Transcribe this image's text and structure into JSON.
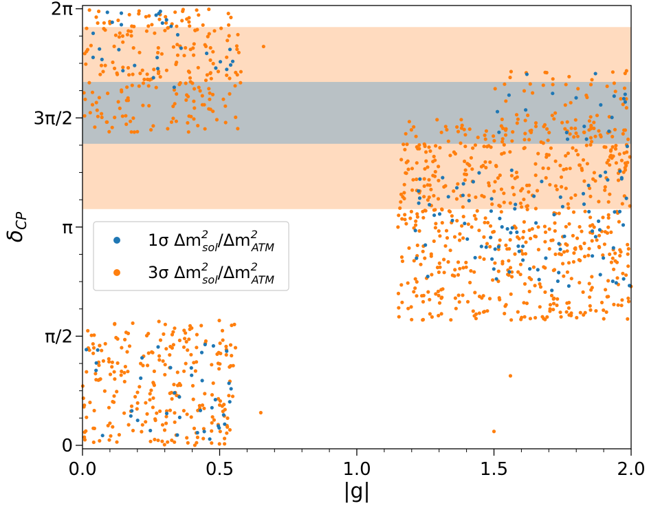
{
  "chart_data": {
    "type": "scatter",
    "xlabel": "|g|",
    "ylabel_symbol": "δ",
    "ylabel_sub": "CP",
    "xlim": [
      0,
      2
    ],
    "ylim_rad": [
      -0.05,
      6.33
    ],
    "xticks": [
      {
        "v": 0.0,
        "label": "0.0"
      },
      {
        "v": 0.5,
        "label": "0.5"
      },
      {
        "v": 1.0,
        "label": "1.0"
      },
      {
        "v": 1.5,
        "label": "1.5"
      },
      {
        "v": 2.0,
        "label": "2.0"
      }
    ],
    "yticks": [
      {
        "v": 0,
        "label": "0"
      },
      {
        "v": 1.5708,
        "label": "π/2"
      },
      {
        "v": 3.1416,
        "label": "π"
      },
      {
        "v": 4.7124,
        "label": "3π/2"
      },
      {
        "v": 6.2832,
        "label": "2π"
      }
    ],
    "bands": [
      {
        "name": "3σ range",
        "from": 3.4,
        "to": 6.02,
        "color": "#ffdbbf"
      },
      {
        "name": "1σ range",
        "from": 4.34,
        "to": 5.23,
        "color": "#b9c1c5"
      }
    ],
    "series": [
      {
        "name": "1σ Δm²sol/Δm²ATM",
        "legend_main": "1σ Δm",
        "legend_sup1": "2",
        "legend_sub1": "sol",
        "legend_mid": "/Δm",
        "legend_sup2": "2",
        "legend_sub2": "ATM",
        "color": "#1f77b4",
        "regions": [
          {
            "x": [
              0.0,
              0.55
            ],
            "y": [
              5.15,
              6.25
            ],
            "n": 30
          },
          {
            "x": [
              0.0,
              0.55
            ],
            "y": [
              0.0,
              1.6
            ],
            "n": 38
          },
          {
            "x": [
              1.2,
              2.0
            ],
            "y": [
              2.2,
              4.0
            ],
            "n": 90
          },
          {
            "x": [
              1.5,
              2.0
            ],
            "y": [
              4.3,
              5.1
            ],
            "n": 18
          }
        ]
      },
      {
        "name": "3σ Δm²sol/Δm²ATM",
        "legend_main": "3σ Δm",
        "legend_sup1": "2",
        "legend_sub1": "sol",
        "legend_mid": "/Δm",
        "legend_sup2": "2",
        "legend_sub2": "ATM",
        "color": "#ff7f0e",
        "regions": [
          {
            "x": [
              0.0,
              0.58
            ],
            "y": [
              4.5,
              6.28
            ],
            "n": 230
          },
          {
            "x": [
              0.0,
              0.56
            ],
            "y": [
              0.0,
              1.8
            ],
            "n": 250
          },
          {
            "x": [
              1.15,
              2.0
            ],
            "y": [
              1.8,
              4.7
            ],
            "n": 650
          },
          {
            "x": [
              1.5,
              2.0
            ],
            "y": [
              4.4,
              5.4
            ],
            "n": 60
          }
        ]
      }
    ],
    "outliers": [
      {
        "x": 0.66,
        "y": 5.74,
        "series": 1
      },
      {
        "x": 0.65,
        "y": 0.47,
        "series": 1
      },
      {
        "x": 1.5,
        "y": 0.2,
        "series": 1
      },
      {
        "x": 1.56,
        "y": 1.0,
        "series": 1
      },
      {
        "x": 1.62,
        "y": 5.34,
        "series": 0
      },
      {
        "x": 1.87,
        "y": 5.35,
        "series": 0
      }
    ],
    "legend_position": "center-left",
    "grid": false
  }
}
